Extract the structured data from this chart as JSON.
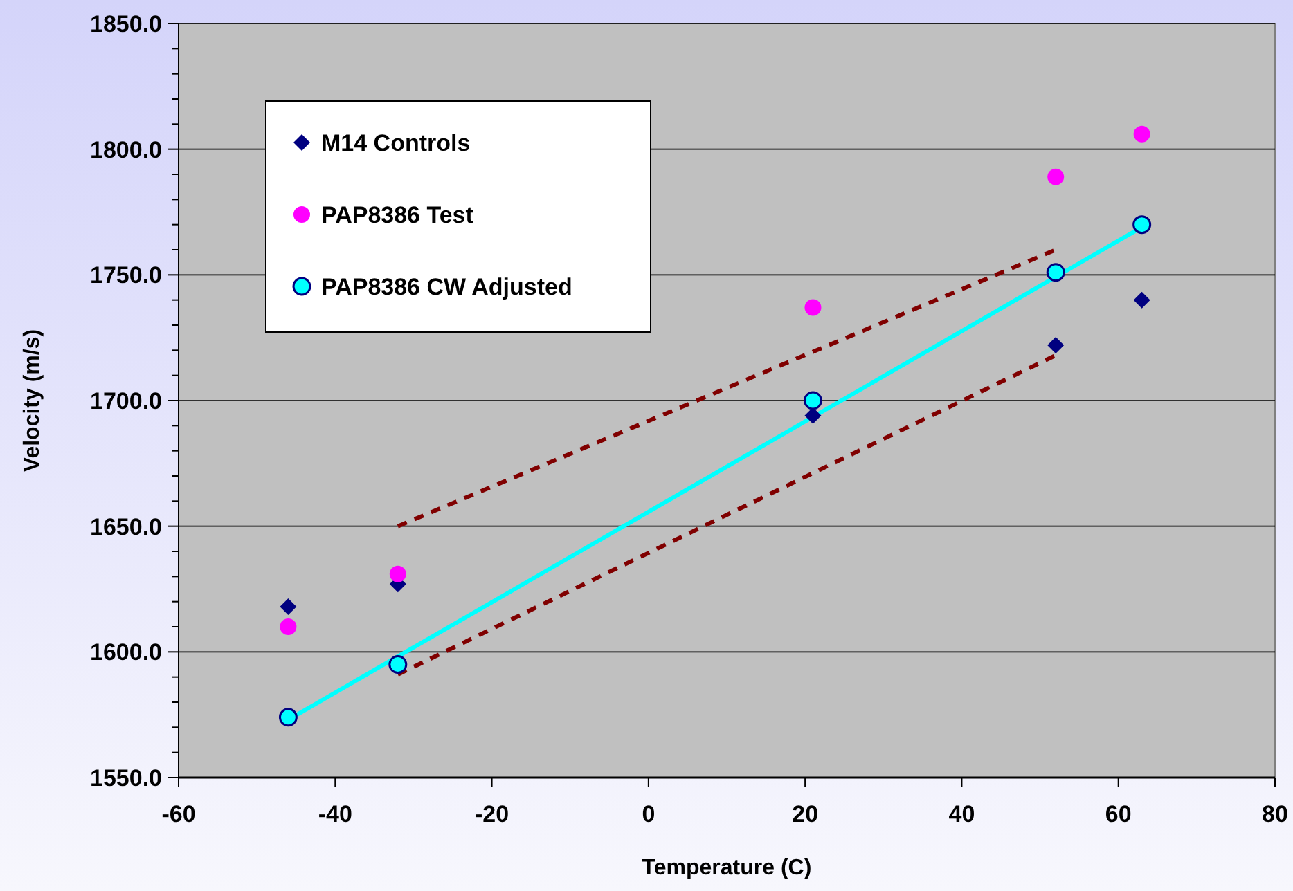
{
  "chart_data": {
    "type": "scatter",
    "xlabel": "Temperature (C)",
    "ylabel": "Velocity (m/s)",
    "xlim": [
      -60,
      80
    ],
    "xticks": [
      -60,
      -40,
      -20,
      0,
      20,
      40,
      60,
      80
    ],
    "ylim": [
      1550,
      1850
    ],
    "yticks": [
      {
        "value": 1550,
        "label": "1550.0"
      },
      {
        "value": 1560,
        "label": null
      },
      {
        "value": 1570,
        "label": null
      },
      {
        "value": 1580,
        "label": null
      },
      {
        "value": 1590,
        "label": null
      },
      {
        "value": 1600,
        "label": "1600.0"
      },
      {
        "value": 1610,
        "label": null
      },
      {
        "value": 1620,
        "label": null
      },
      {
        "value": 1630,
        "label": null
      },
      {
        "value": 1640,
        "label": null
      },
      {
        "value": 1650,
        "label": "1650.0"
      },
      {
        "value": 1660,
        "label": null
      },
      {
        "value": 1670,
        "label": null
      },
      {
        "value": 1680,
        "label": null
      },
      {
        "value": 1690,
        "label": null
      },
      {
        "value": 1700,
        "label": "1700.0"
      },
      {
        "value": 1710,
        "label": null
      },
      {
        "value": 1720,
        "label": null
      },
      {
        "value": 1730,
        "label": null
      },
      {
        "value": 1740,
        "label": null
      },
      {
        "value": 1750,
        "label": "1750.0"
      },
      {
        "value": 1760,
        "label": null
      },
      {
        "value": 1770,
        "label": null
      },
      {
        "value": 1780,
        "label": null
      },
      {
        "value": 1790,
        "label": null
      },
      {
        "value": 1800,
        "label": "1800.0"
      },
      {
        "value": 1810,
        "label": null
      },
      {
        "value": 1820,
        "label": null
      },
      {
        "value": 1830,
        "label": null
      },
      {
        "value": 1840,
        "label": null
      },
      {
        "value": 1850,
        "label": "1850.0"
      }
    ],
    "grid": "y",
    "legend": "top left",
    "series": [
      {
        "name": "M14 Controls",
        "marker": "diamond",
        "color": "#000080",
        "x": [
          -46,
          -32,
          21,
          52,
          63
        ],
        "values": [
          1618,
          1627,
          1694,
          1722,
          1740
        ]
      },
      {
        "name": "PAP8386 Test",
        "marker": "circle",
        "color": "#ff00ff",
        "x": [
          -46,
          -32,
          21,
          52,
          63
        ],
        "values": [
          1610,
          1631,
          1737,
          1789,
          1806
        ]
      },
      {
        "name": "PAP8386 CW Adjusted",
        "marker": "circle",
        "color": "#00ffff",
        "x": [
          -46,
          -32,
          21,
          52,
          63
        ],
        "values": [
          1574,
          1595,
          1700,
          1751,
          1770
        ]
      },
      {
        "type": "line",
        "marker": "none",
        "line_style": "solid",
        "color": "#00ffff",
        "x": [
          -46,
          63
        ],
        "values": [
          1573,
          1769
        ]
      },
      {
        "type": "line",
        "marker": "none",
        "line_style": "dashed",
        "color": "#800000",
        "x": [
          -32,
          52
        ],
        "values": [
          1650,
          1760
        ]
      },
      {
        "type": "line",
        "marker": "none",
        "line_style": "dashed",
        "color": "#800000",
        "x": [
          -32,
          52
        ],
        "values": [
          1591,
          1718
        ]
      }
    ]
  }
}
